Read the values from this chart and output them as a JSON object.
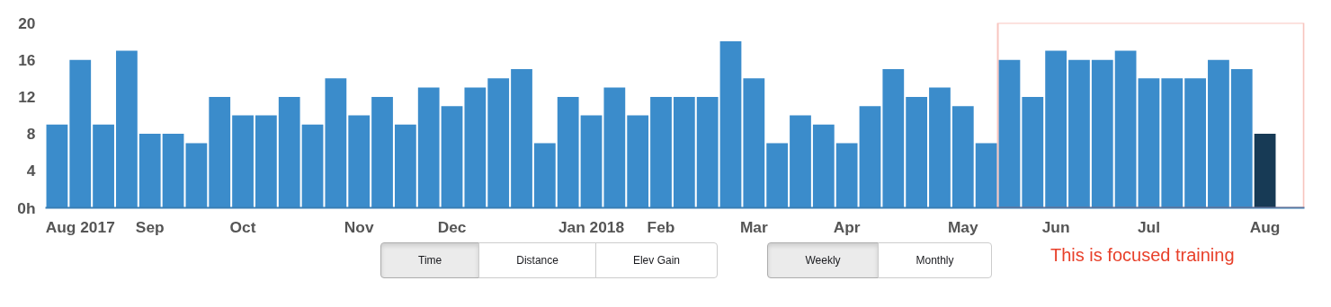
{
  "chart_data": {
    "type": "bar",
    "categories": [
      null,
      "Aug 2017",
      null,
      null,
      "Sep",
      null,
      null,
      null,
      "Oct",
      null,
      null,
      null,
      null,
      "Nov",
      null,
      null,
      null,
      "Dec",
      null,
      null,
      null,
      null,
      null,
      "Jan 2018",
      null,
      null,
      "Feb",
      null,
      null,
      null,
      "Mar",
      null,
      null,
      null,
      "Apr",
      null,
      null,
      null,
      null,
      "May",
      null,
      null,
      null,
      "Jun",
      null,
      null,
      null,
      "Jul",
      null,
      null,
      null,
      null,
      "Aug"
    ],
    "values": [
      9,
      16,
      9,
      17,
      8,
      8,
      7,
      12,
      10,
      10,
      12,
      9,
      14,
      10,
      12,
      9,
      13,
      11,
      13,
      14,
      15,
      7,
      12,
      10,
      13,
      10,
      12,
      12,
      12,
      18,
      14,
      7,
      10,
      9,
      7,
      11,
      15,
      12,
      13,
      11,
      7,
      16,
      12,
      17,
      16,
      16,
      17,
      14,
      14,
      14,
      16,
      15,
      8
    ],
    "colors": [
      "#3b8ccb",
      "#3b8ccb",
      "#3b8ccb",
      "#3b8ccb",
      "#3b8ccb",
      "#3b8ccb",
      "#3b8ccb",
      "#3b8ccb",
      "#3b8ccb",
      "#3b8ccb",
      "#3b8ccb",
      "#3b8ccb",
      "#3b8ccb",
      "#3b8ccb",
      "#3b8ccb",
      "#3b8ccb",
      "#3b8ccb",
      "#3b8ccb",
      "#3b8ccb",
      "#3b8ccb",
      "#3b8ccb",
      "#3b8ccb",
      "#3b8ccb",
      "#3b8ccb",
      "#3b8ccb",
      "#3b8ccb",
      "#3b8ccb",
      "#3b8ccb",
      "#3b8ccb",
      "#3b8ccb",
      "#3b8ccb",
      "#3b8ccb",
      "#3b8ccb",
      "#3b8ccb",
      "#3b8ccb",
      "#3b8ccb",
      "#3b8ccb",
      "#3b8ccb",
      "#3b8ccb",
      "#3b8ccb",
      "#3b8ccb",
      "#3b8ccb",
      "#3b8ccb",
      "#3b8ccb",
      "#3b8ccb",
      "#3b8ccb",
      "#3b8ccb",
      "#3b8ccb",
      "#3b8ccb",
      "#3b8ccb",
      "#3b8ccb",
      "#3b8ccb",
      "#173a55"
    ],
    "ylim": [
      0,
      20
    ],
    "yticks": [
      {
        "value": 0,
        "label": "0h"
      },
      4,
      8,
      12,
      16,
      20
    ],
    "annotations": [
      "This is focused training",
      "Time",
      "Distance",
      "Elev Gain",
      "Weekly",
      "Monthly"
    ]
  }
}
